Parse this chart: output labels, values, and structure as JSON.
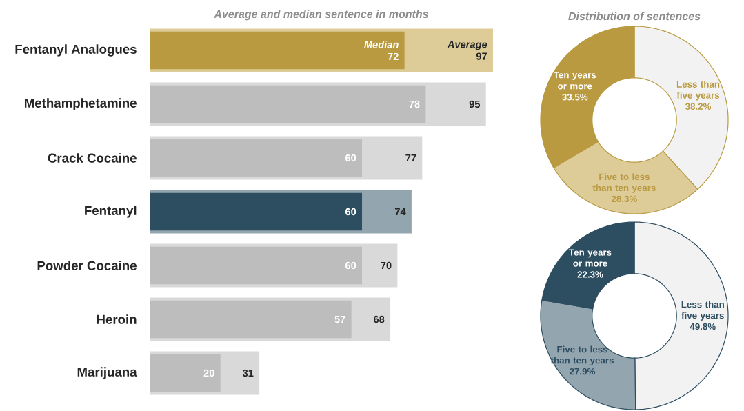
{
  "chart_data": [
    {
      "type": "bar",
      "orientation": "horizontal",
      "title": "Average and median sentence in months",
      "categories": [
        "Fentanyl Analogues",
        "Methamphetamine",
        "Crack Cocaine",
        "Fentanyl",
        "Powder Cocaine",
        "Heroin",
        "Marijuana"
      ],
      "series": [
        {
          "name": "Average",
          "colors": [
            "#ddcb98",
            "#d9d9d9",
            "#d9d9d9",
            "#93a5af",
            "#d9d9d9",
            "#d9d9d9",
            "#d9d9d9"
          ],
          "values": [
            97,
            95,
            77,
            74,
            70,
            68,
            31
          ]
        },
        {
          "name": "Median",
          "colors": [
            "#b99a40",
            "#bdbdbd",
            "#bdbdbd",
            "#2d4d60",
            "#bdbdbd",
            "#bdbdbd",
            "#bdbdbd"
          ],
          "values": [
            72,
            78,
            60,
            60,
            60,
            57,
            20
          ]
        }
      ],
      "data_labels": true
    },
    {
      "type": "donut",
      "title": "Distribution of sentences",
      "categories": [
        "Less than five years",
        "Five to less than ten years",
        "Ten years or more"
      ],
      "values": [
        38.2,
        28.3,
        33.5
      ],
      "value_labels": [
        "38.2%",
        "28.3%",
        "33.5%"
      ],
      "colors": [
        "#f2f2f2",
        "#ddcb98",
        "#b99a40"
      ]
    },
    {
      "type": "donut",
      "categories": [
        "Less than five years",
        "Five to less than ten years",
        "Ten years or more"
      ],
      "values": [
        49.8,
        27.9,
        22.3
      ],
      "value_labels": [
        "49.8%",
        "27.9%",
        "22.3%"
      ],
      "colors": [
        "#f2f2f2",
        "#93a5af",
        "#2d4d60"
      ]
    }
  ]
}
